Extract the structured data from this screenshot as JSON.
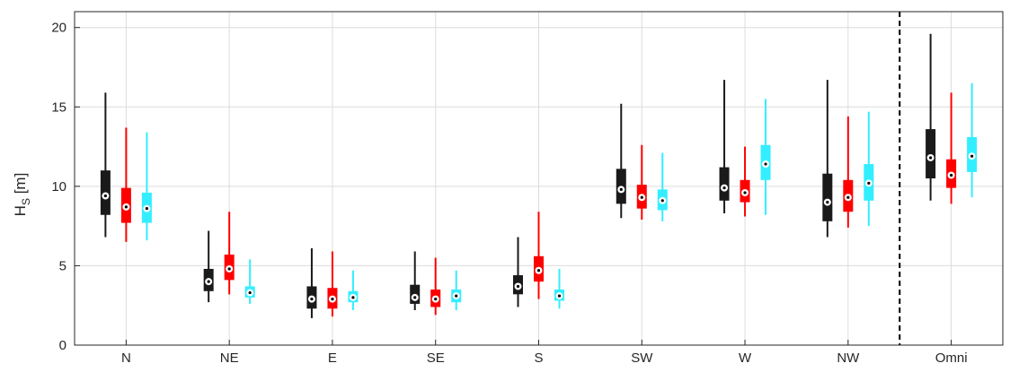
{
  "chart_data": {
    "type": "boxplot",
    "title": "",
    "xlabel": "",
    "ylabel": "H",
    "ylabel_subscript": "S",
    "ylabel_unit": "[m]",
    "ylim": [
      0,
      21
    ],
    "yticks": [
      0,
      5,
      10,
      15,
      20
    ],
    "grid": true,
    "legend": "none",
    "divider_after_category": "NW",
    "categories": [
      "N",
      "NE",
      "E",
      "SE",
      "S",
      "SW",
      "W",
      "NW",
      "Omni"
    ],
    "series": [
      {
        "color": "#1a1a1a",
        "boxes": [
          {
            "min": 6.8,
            "q1": 8.2,
            "median": 9.4,
            "q3": 11.0,
            "max": 15.9
          },
          {
            "min": 2.7,
            "q1": 3.4,
            "median": 4.0,
            "q3": 4.8,
            "max": 7.2
          },
          {
            "min": 1.7,
            "q1": 2.3,
            "median": 2.9,
            "q3": 3.7,
            "max": 6.1
          },
          {
            "min": 2.2,
            "q1": 2.6,
            "median": 3.0,
            "q3": 3.8,
            "max": 5.9
          },
          {
            "min": 2.4,
            "q1": 3.2,
            "median": 3.7,
            "q3": 4.4,
            "max": 6.8
          },
          {
            "min": 8.0,
            "q1": 8.9,
            "median": 9.8,
            "q3": 11.1,
            "max": 15.2
          },
          {
            "min": 8.3,
            "q1": 9.1,
            "median": 9.9,
            "q3": 11.2,
            "max": 16.7
          },
          {
            "min": 6.8,
            "q1": 7.8,
            "median": 9.0,
            "q3": 10.8,
            "max": 16.7
          },
          {
            "min": 9.1,
            "q1": 10.5,
            "median": 11.8,
            "q3": 13.6,
            "max": 19.6
          }
        ]
      },
      {
        "color": "#ff0000",
        "boxes": [
          {
            "min": 6.5,
            "q1": 7.7,
            "median": 8.7,
            "q3": 9.9,
            "max": 13.7
          },
          {
            "min": 3.2,
            "q1": 4.1,
            "median": 4.8,
            "q3": 5.7,
            "max": 8.4
          },
          {
            "min": 1.8,
            "q1": 2.3,
            "median": 2.9,
            "q3": 3.6,
            "max": 5.9
          },
          {
            "min": 1.9,
            "q1": 2.4,
            "median": 2.9,
            "q3": 3.5,
            "max": 5.5
          },
          {
            "min": 2.9,
            "q1": 4.0,
            "median": 4.7,
            "q3": 5.6,
            "max": 8.4
          },
          {
            "min": 7.9,
            "q1": 8.6,
            "median": 9.3,
            "q3": 10.1,
            "max": 12.6
          },
          {
            "min": 8.1,
            "q1": 9.0,
            "median": 9.6,
            "q3": 10.4,
            "max": 12.5
          },
          {
            "min": 7.4,
            "q1": 8.4,
            "median": 9.3,
            "q3": 10.4,
            "max": 14.4
          },
          {
            "min": 8.9,
            "q1": 9.9,
            "median": 10.7,
            "q3": 11.7,
            "max": 15.9
          }
        ]
      },
      {
        "color": "#33eeff",
        "boxes": [
          {
            "min": 6.6,
            "q1": 7.7,
            "median": 8.6,
            "q3": 9.6,
            "max": 13.4
          },
          {
            "min": 2.6,
            "q1": 3.0,
            "median": 3.3,
            "q3": 3.7,
            "max": 5.4
          },
          {
            "min": 2.2,
            "q1": 2.7,
            "median": 3.0,
            "q3": 3.4,
            "max": 4.7
          },
          {
            "min": 2.2,
            "q1": 2.7,
            "median": 3.1,
            "q3": 3.5,
            "max": 4.7
          },
          {
            "min": 2.3,
            "q1": 2.8,
            "median": 3.1,
            "q3": 3.5,
            "max": 4.8
          },
          {
            "min": 7.8,
            "q1": 8.5,
            "median": 9.1,
            "q3": 9.8,
            "max": 12.1
          },
          {
            "min": 8.2,
            "q1": 10.4,
            "median": 11.4,
            "q3": 12.6,
            "max": 15.5
          },
          {
            "min": 7.5,
            "q1": 9.1,
            "median": 10.2,
            "q3": 11.4,
            "max": 14.7
          },
          {
            "min": 9.3,
            "q1": 10.9,
            "median": 11.9,
            "q3": 13.1,
            "max": 16.5
          }
        ]
      }
    ]
  }
}
